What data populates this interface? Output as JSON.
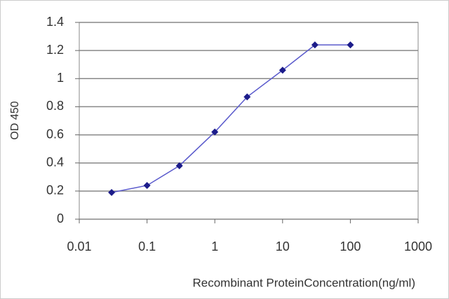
{
  "chart_data": {
    "type": "line",
    "x_label": "Recombinant ProteinConcentration(ng/ml)",
    "y_label": "OD 450",
    "x": [
      0.03,
      0.1,
      0.3,
      1,
      3,
      10,
      30,
      100
    ],
    "series": [
      {
        "color": "#1c1c8a",
        "line_color": "#5a5acc",
        "values": [
          0.19,
          0.24,
          0.38,
          0.62,
          0.87,
          1.06,
          1.24,
          1.24
        ]
      }
    ],
    "xscale": "log",
    "xlim": [
      0.01,
      1000
    ],
    "xticks": [
      0.01,
      0.1,
      1,
      10,
      100,
      1000
    ],
    "ylim": [
      0,
      1.4
    ],
    "yticks": [
      0,
      0.2,
      0.4,
      0.6,
      0.8,
      1,
      1.2,
      1.4
    ],
    "grid": true
  }
}
